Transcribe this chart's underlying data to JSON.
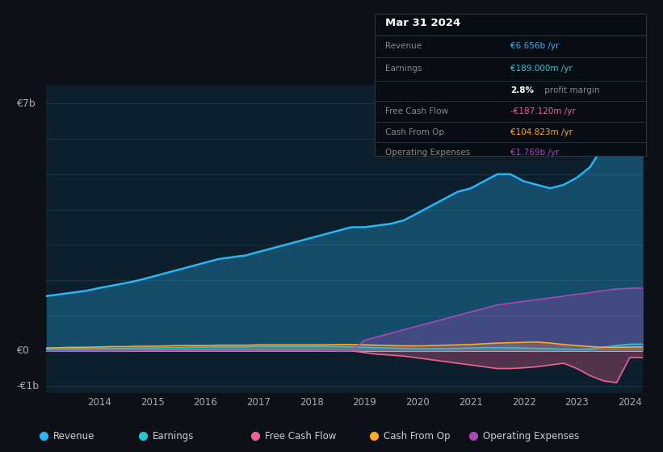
{
  "background_color": "#0d1117",
  "plot_bg_color": "#0d1f2d",
  "ylabel_top": "€7b",
  "ylabel_zero": "€0",
  "ylabel_bottom": "-€1b",
  "x_ticks": [
    2014,
    2015,
    2016,
    2017,
    2018,
    2019,
    2020,
    2021,
    2022,
    2023,
    2024
  ],
  "ylim": [
    -1.2,
    7.5
  ],
  "years": [
    2013.0,
    2013.25,
    2013.5,
    2013.75,
    2014.0,
    2014.25,
    2014.5,
    2014.75,
    2015.0,
    2015.25,
    2015.5,
    2015.75,
    2016.0,
    2016.25,
    2016.5,
    2016.75,
    2017.0,
    2017.25,
    2017.5,
    2017.75,
    2018.0,
    2018.25,
    2018.5,
    2018.75,
    2019.0,
    2019.25,
    2019.5,
    2019.75,
    2020.0,
    2020.25,
    2020.5,
    2020.75,
    2021.0,
    2021.25,
    2021.5,
    2021.75,
    2022.0,
    2022.25,
    2022.5,
    2022.75,
    2023.0,
    2023.25,
    2023.5,
    2023.75,
    2024.0,
    2024.25
  ],
  "revenue": [
    1.55,
    1.6,
    1.65,
    1.7,
    1.78,
    1.85,
    1.92,
    2.0,
    2.1,
    2.2,
    2.3,
    2.4,
    2.5,
    2.6,
    2.65,
    2.7,
    2.8,
    2.9,
    3.0,
    3.1,
    3.2,
    3.3,
    3.4,
    3.5,
    3.5,
    3.55,
    3.6,
    3.7,
    3.9,
    4.1,
    4.3,
    4.5,
    4.6,
    4.8,
    5.0,
    5.0,
    4.8,
    4.7,
    4.6,
    4.7,
    4.9,
    5.2,
    5.8,
    6.3,
    6.656,
    6.7
  ],
  "earnings": [
    0.05,
    0.05,
    0.06,
    0.06,
    0.07,
    0.07,
    0.07,
    0.08,
    0.08,
    0.09,
    0.09,
    0.1,
    0.1,
    0.11,
    0.11,
    0.11,
    0.12,
    0.12,
    0.12,
    0.12,
    0.12,
    0.12,
    0.12,
    0.11,
    0.1,
    0.09,
    0.08,
    0.07,
    0.06,
    0.06,
    0.06,
    0.07,
    0.08,
    0.09,
    0.09,
    0.09,
    0.08,
    0.07,
    0.06,
    0.05,
    0.04,
    0.05,
    0.1,
    0.15,
    0.189,
    0.19
  ],
  "free_cash_flow": [
    0.0,
    0.0,
    0.01,
    0.01,
    0.01,
    0.01,
    0.01,
    0.02,
    0.02,
    0.02,
    0.02,
    0.02,
    0.02,
    0.02,
    0.02,
    0.02,
    0.02,
    0.02,
    0.02,
    0.02,
    0.02,
    0.01,
    0.01,
    0.0,
    -0.05,
    -0.1,
    -0.12,
    -0.15,
    -0.2,
    -0.25,
    -0.3,
    -0.35,
    -0.4,
    -0.45,
    -0.5,
    -0.5,
    -0.48,
    -0.45,
    -0.4,
    -0.35,
    -0.5,
    -0.7,
    -0.85,
    -0.9,
    -0.187,
    -0.19
  ],
  "cash_from_op": [
    0.08,
    0.09,
    0.1,
    0.1,
    0.11,
    0.12,
    0.12,
    0.13,
    0.13,
    0.14,
    0.15,
    0.15,
    0.15,
    0.16,
    0.16,
    0.16,
    0.17,
    0.17,
    0.17,
    0.17,
    0.17,
    0.17,
    0.18,
    0.18,
    0.17,
    0.16,
    0.15,
    0.14,
    0.14,
    0.15,
    0.16,
    0.17,
    0.18,
    0.2,
    0.22,
    0.23,
    0.24,
    0.25,
    0.22,
    0.18,
    0.15,
    0.12,
    0.1,
    0.1,
    0.1048,
    0.11
  ],
  "operating_expenses": [
    0.0,
    0.0,
    0.0,
    0.0,
    0.0,
    0.0,
    0.0,
    0.0,
    0.0,
    0.0,
    0.0,
    0.0,
    0.0,
    0.0,
    0.0,
    0.0,
    0.0,
    0.0,
    0.0,
    0.0,
    0.0,
    0.0,
    0.0,
    0.0,
    0.3,
    0.4,
    0.5,
    0.6,
    0.7,
    0.8,
    0.9,
    1.0,
    1.1,
    1.2,
    1.3,
    1.35,
    1.4,
    1.45,
    1.5,
    1.55,
    1.6,
    1.65,
    1.7,
    1.75,
    1.769,
    1.78
  ],
  "colors": {
    "revenue": "#29b6f6",
    "earnings": "#26c6da",
    "free_cash_flow": "#f06292",
    "cash_from_op": "#ffa726",
    "operating_expenses": "#ab47bc"
  },
  "info_box": {
    "title": "Mar 31 2024",
    "revenue_label": "Revenue",
    "revenue_value": "€6.656b /yr",
    "earnings_label": "Earnings",
    "earnings_value": "€189.000m /yr",
    "margin_pct": "2.8%",
    "margin_text": " profit margin",
    "fcf_label": "Free Cash Flow",
    "fcf_value": "-€187.120m /yr",
    "cfop_label": "Cash From Op",
    "cfop_value": "€104.823m /yr",
    "opex_label": "Operating Expenses",
    "opex_value": "€1.769b /yr"
  },
  "legend": [
    {
      "label": "Revenue",
      "color": "#29b6f6"
    },
    {
      "label": "Earnings",
      "color": "#26c6da"
    },
    {
      "label": "Free Cash Flow",
      "color": "#f06292"
    },
    {
      "label": "Cash From Op",
      "color": "#ffa726"
    },
    {
      "label": "Operating Expenses",
      "color": "#ab47bc"
    }
  ]
}
